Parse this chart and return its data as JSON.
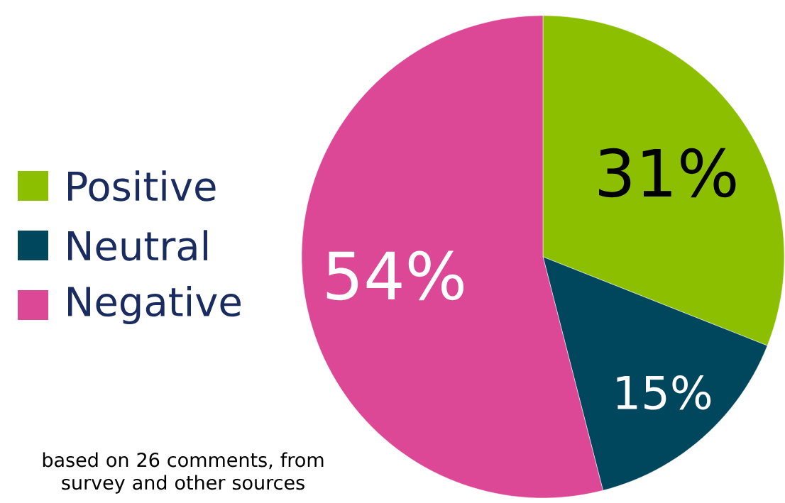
{
  "chart_data": {
    "type": "pie",
    "categories": [
      "Positive",
      "Neutral",
      "Negative"
    ],
    "values": [
      31,
      15,
      54
    ],
    "colors": [
      "#8cbf00",
      "#00475e",
      "#dc4896"
    ],
    "value_labels": [
      "31%",
      "15%",
      "54%"
    ],
    "legend": "left",
    "annotations": [
      "based on 26 comments, from survey and other sources"
    ]
  }
}
